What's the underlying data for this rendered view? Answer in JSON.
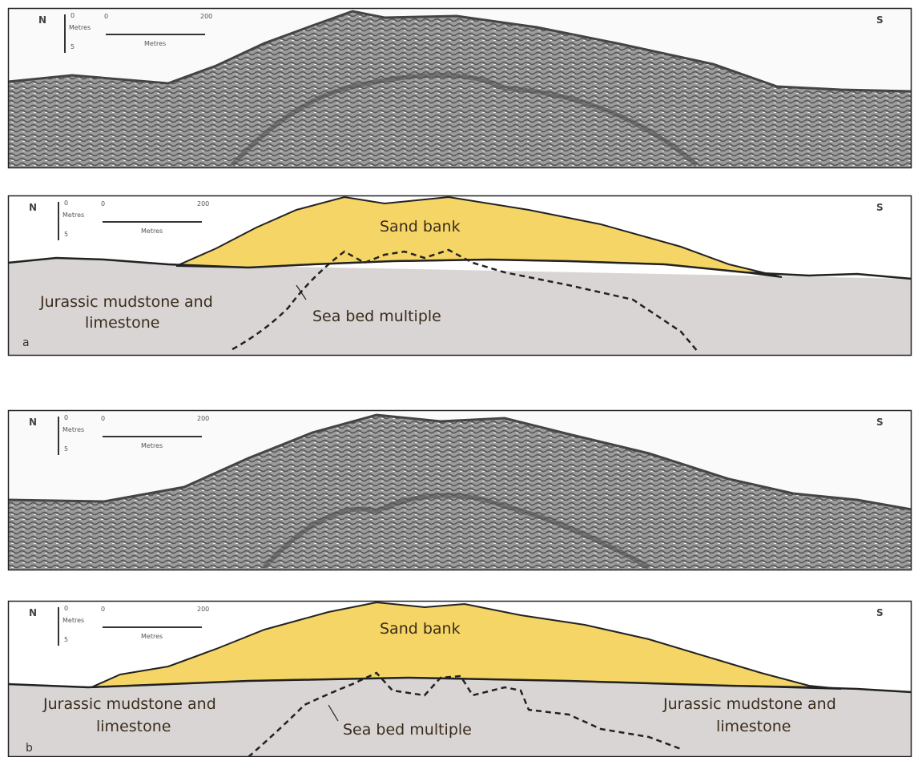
{
  "profiles": [
    {
      "kind": "seismic",
      "north": "N",
      "south": "S",
      "vscale": {
        "top": "0",
        "unit": "Metres",
        "bottom": "5"
      },
      "hscale": {
        "start": "0",
        "end": "200",
        "unit": "Metres"
      }
    },
    {
      "kind": "interpretation",
      "panel_label": "a",
      "north": "N",
      "south": "S",
      "vscale": {
        "top": "0",
        "unit": "Metres",
        "bottom": "5"
      },
      "hscale": {
        "start": "0",
        "end": "200",
        "unit": "Metres"
      },
      "labels": {
        "sand_bank": "Sand bank",
        "rock_line1": "Jurassic mudstone and",
        "rock_line2": "limestone",
        "multiple": "Sea bed multiple"
      }
    },
    {
      "kind": "seismic",
      "north": "N",
      "south": "S",
      "vscale": {
        "top": "0",
        "unit": "Metres",
        "bottom": "5"
      },
      "hscale": {
        "start": "0",
        "end": "200",
        "unit": "Metres"
      }
    },
    {
      "kind": "interpretation",
      "panel_label": "b",
      "north": "N",
      "south": "S",
      "vscale": {
        "top": "0",
        "unit": "Metres",
        "bottom": "5"
      },
      "hscale": {
        "start": "0",
        "end": "200",
        "unit": "Metres"
      },
      "labels": {
        "sand_bank": "Sand bank",
        "rock_line1": "Jurassic mudstone and",
        "rock_line2": "limestone",
        "rock_right_line1": "Jurassic mudstone and",
        "rock_right_line2": "limestone",
        "multiple": "Sea bed multiple"
      }
    }
  ],
  "colors": {
    "sand": "#f5d565",
    "rock": "#d9d5d4",
    "frame": "#222222",
    "seismic_dark": "#5a5a5a"
  }
}
